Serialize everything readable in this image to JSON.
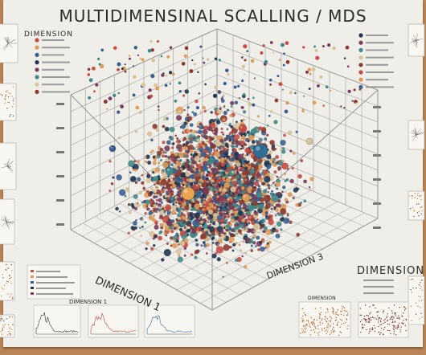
{
  "title": "MULTIDIMENSINAL SCALLING / MDS",
  "colors": {
    "board": "#b98556",
    "paper": "#efeee9",
    "grid": "#8d8d8d",
    "ink": "#2b2b2b",
    "palette": [
      "#c84b42",
      "#e09a57",
      "#3a5f8f",
      "#1f3650",
      "#7a3b5c",
      "#3f8a8a",
      "#d9c39a",
      "#8c3a2f"
    ]
  },
  "labels": {
    "dimension_top_left": "DIMENSION",
    "dimension_right": "DIMENSION",
    "x_axis": "DIMENSION 1",
    "z_axis": "DIMENSION 3",
    "small_chart_1": "DIMENSION 1",
    "small_chart_2": "DIMENSION"
  },
  "chart_data": {
    "type": "scatter",
    "projection": "3d",
    "title": "MULTIDIMENSINAL SCALLING / MDS",
    "xlabel": "DIMENSION 1",
    "zlabel": "DIMENSION 3",
    "grid": true,
    "legend": "top-left and top-right (unreadable entries)",
    "point_count_estimate": 3000,
    "highlighted_points": [
      {
        "color": "#e9a54e",
        "size": "large",
        "region": "lower-center"
      },
      {
        "color": "#2f6e92",
        "size": "large",
        "region": "upper-right"
      },
      {
        "color": "#c84b42",
        "size": "medium",
        "region": "upper-center"
      },
      {
        "color": "#e9a54e",
        "size": "medium",
        "region": "center"
      }
    ]
  }
}
